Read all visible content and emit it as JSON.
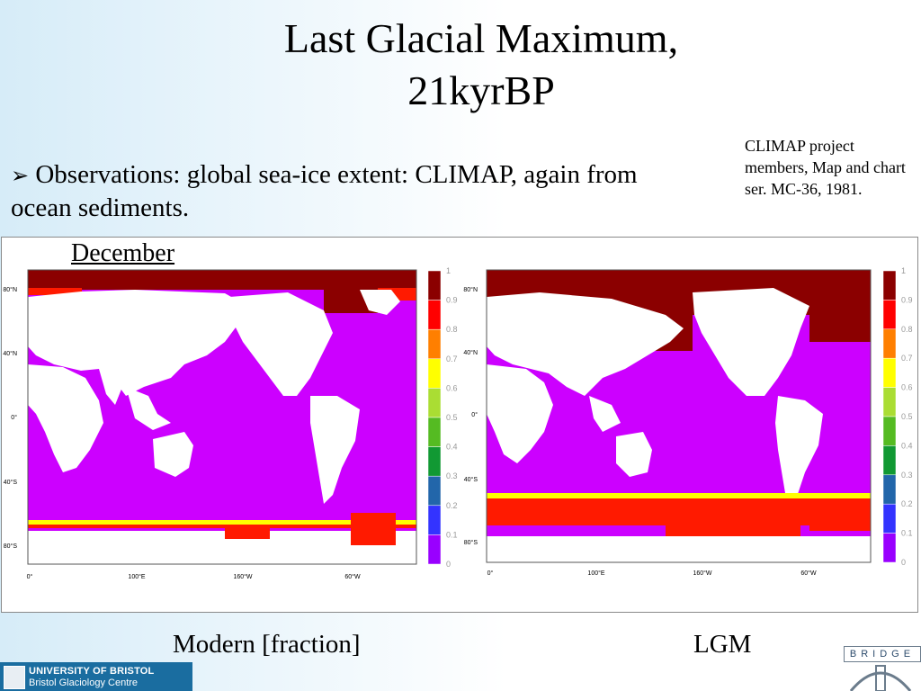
{
  "slide": {
    "title_line1": "Last Glacial Maximum,",
    "title_line2": "21kyrBP",
    "bullet_marker": "➢",
    "bullet_text": "Observations: global sea-ice extent: CLIMAP, again from ocean sediments.",
    "citation": "CLIMAP project members, Map and chart ser. MC-36, 1981.",
    "panel_month": "December",
    "caption_left": "Modern [fraction]",
    "caption_right": "LGM"
  },
  "maps": {
    "colors": {
      "land": "#ffffff",
      "open_ocean": "#cc00ff",
      "ice_full": "#8b0000",
      "ice_high": "#ff1a00",
      "ice_edge": "#ffff00",
      "coast": "#8a8a8a"
    },
    "lat_labels_left": [
      "80°N",
      "40°N",
      "0°",
      "40°S",
      "80°S"
    ],
    "lat_labels_right": [
      "80°N",
      "40°N",
      "0°",
      "40°S",
      "80°S"
    ],
    "lon_labels": [
      "0°",
      "100°E",
      "160°W",
      "60°W"
    ],
    "colorbar": {
      "ticks": [
        "1",
        "0.9",
        "0.8",
        "0.7",
        "0.6",
        "0.5",
        "0.4",
        "0.3",
        "0.2",
        "0.1",
        "0"
      ],
      "bins": [
        "#8b0000",
        "#ff0000",
        "#ff7f00",
        "#ffff00",
        "#aadd33",
        "#55bb22",
        "#119933",
        "#2266aa",
        "#3333ff",
        "#9900ff"
      ]
    }
  },
  "logos": {
    "university_line1": "UNIVERSITY OF BRISTOL",
    "university_line2": "Bristol Glaciology Centre",
    "bridge_word": "BRIDGE",
    "crest_icon": "university-crest-icon",
    "bridge_icon": "bridge-arch-icon"
  }
}
